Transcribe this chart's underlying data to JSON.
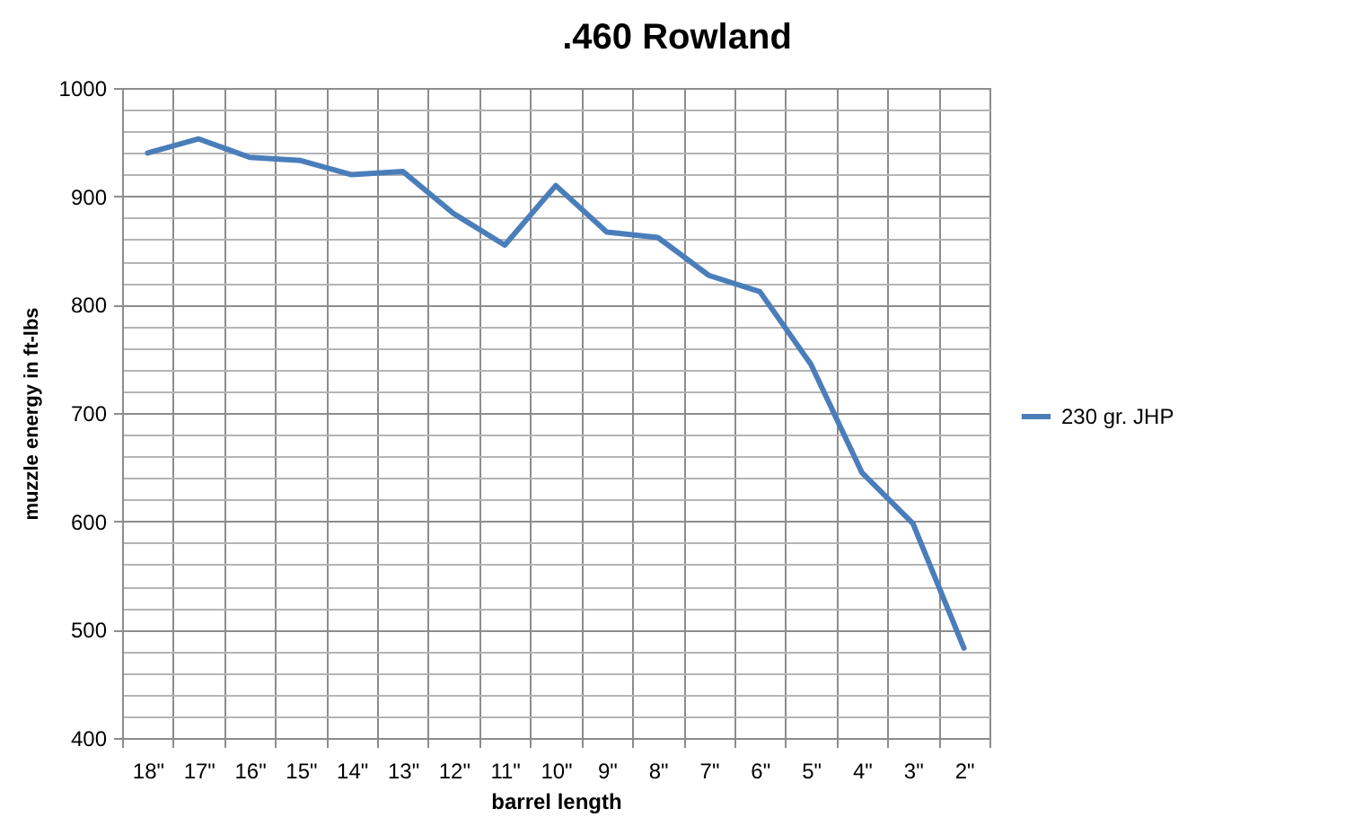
{
  "chart_data": {
    "type": "line",
    "title": ".460 Rowland",
    "xlabel": "barrel length",
    "ylabel": "muzzle energy in ft-lbs",
    "categories": [
      "18\"",
      "17\"",
      "16\"",
      "15\"",
      "14\"",
      "13\"",
      "12\"",
      "11\"",
      "10\"",
      "9\"",
      "8\"",
      "7\"",
      "6\"",
      "5\"",
      "4\"",
      "3\"",
      "2\""
    ],
    "series": [
      {
        "name": "230 gr. JHP",
        "color": "#4a7ebb",
        "values": [
          940,
          953,
          936,
          933,
          920,
          923,
          884,
          855,
          910,
          867,
          862,
          827,
          812,
          745,
          645,
          598,
          483
        ]
      }
    ],
    "ylim": [
      400,
      1000
    ],
    "yticks": [
      400,
      {
        "value": 420,
        "label": null
      },
      {
        "value": 440,
        "label": null
      },
      {
        "value": 460,
        "label": null
      },
      {
        "value": 480,
        "label": null
      },
      500,
      {
        "value": 520,
        "label": null
      },
      {
        "value": 540,
        "label": null
      },
      {
        "value": 560,
        "label": null
      },
      {
        "value": 580,
        "label": null
      },
      600,
      {
        "value": 620,
        "label": null
      },
      {
        "value": 640,
        "label": null
      },
      {
        "value": 660,
        "label": null
      },
      {
        "value": 680,
        "label": null
      },
      700,
      {
        "value": 720,
        "label": null
      },
      {
        "value": 740,
        "label": null
      },
      {
        "value": 760,
        "label": null
      },
      {
        "value": 780,
        "label": null
      },
      800,
      {
        "value": 820,
        "label": null
      },
      {
        "value": 840,
        "label": null
      },
      {
        "value": 860,
        "label": null
      },
      {
        "value": 880,
        "label": null
      },
      900,
      {
        "value": 920,
        "label": null
      },
      {
        "value": 940,
        "label": null
      },
      {
        "value": 960,
        "label": null
      },
      {
        "value": 980,
        "label": null
      },
      1000
    ],
    "grid": true,
    "legend": "right"
  }
}
